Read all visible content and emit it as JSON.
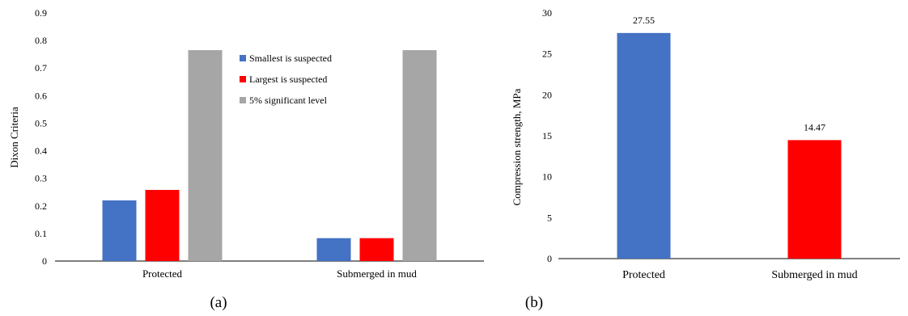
{
  "colors": {
    "blue": "#4472C4",
    "red": "#FF0000",
    "gray": "#A6A6A6",
    "axis": "#000000"
  },
  "chart_data": [
    {
      "type": "bar",
      "panel_label": "(a)",
      "ylabel": "Dixon Criteria",
      "categories": [
        "Protected",
        "Submerged in mud"
      ],
      "ylim": [
        0,
        0.9
      ],
      "yticks": [
        0,
        0.1,
        0.2,
        0.3,
        0.4,
        0.5,
        0.6,
        0.7,
        0.8,
        0.9
      ],
      "legend_position": "top-center",
      "series": [
        {
          "name": "Smallest is suspected",
          "color": "#4472C4",
          "values": [
            0.22,
            0.083
          ]
        },
        {
          "name": "Largest is suspected",
          "color": "#FF0000",
          "values": [
            0.258,
            0.083
          ]
        },
        {
          "name": "5% significant level",
          "color": "#A6A6A6",
          "values": [
            0.765,
            0.765
          ]
        }
      ]
    },
    {
      "type": "bar",
      "panel_label": "(b)",
      "ylabel": "Compression strength, MPa",
      "categories": [
        "Protected",
        "Submerged in mud"
      ],
      "ylim": [
        0,
        30
      ],
      "yticks": [
        0,
        5,
        10,
        15,
        20,
        25,
        30
      ],
      "values": [
        27.55,
        14.47
      ],
      "value_labels": [
        "27.55",
        "14.47"
      ],
      "colors": [
        "#4472C4",
        "#FF0000"
      ]
    }
  ]
}
